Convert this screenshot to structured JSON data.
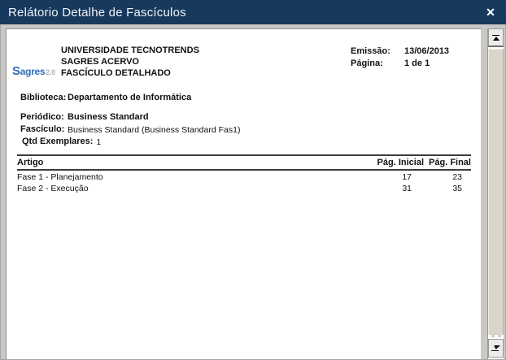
{
  "dialog": {
    "title": "Relátorio Detalhe de Fascículos",
    "close_glyph": "✕"
  },
  "report": {
    "logo": {
      "brand_initial": "S",
      "brand_rest": "agres",
      "version": "2.0"
    },
    "org_lines": [
      "UNIVERSIDADE TECNOTRENDS",
      "SAGRES ACERVO",
      "FASCÍCULO DETALHADO"
    ],
    "meta": {
      "emissao_label": "Emissão:",
      "emissao_value": "13/06/2013",
      "pagina_label": "Página:",
      "pagina_value": "1 de 1"
    },
    "fields": [
      {
        "label": "Biblioteca:",
        "value": "Departamento de Informática"
      },
      {
        "label": "Periódico:",
        "value": "Business Standard"
      },
      {
        "label": "Fascículo:",
        "value": "Business Standard (Business Standard Fas1)"
      },
      {
        "label": "Qtd Exemplares:",
        "value": "1"
      }
    ],
    "table": {
      "columns": [
        "Artigo",
        "Pág. Inicial",
        "Pág. Final"
      ],
      "rows": [
        [
          "Fase 1 - Planejamento",
          "17",
          "23"
        ],
        [
          "Fase 2 - Execução",
          "31",
          "35"
        ]
      ]
    }
  },
  "colors": {
    "titlebar": "#18395e",
    "title_text": "#eef3f8",
    "logo_blue": "#2f6db5",
    "logo_gray": "#b4b4b4",
    "page_bg": "#ffffff",
    "dialog_bg": "#c9c8c4",
    "scroll_thumb": "#d9d5c9",
    "table_rule": "#3c3c3c"
  }
}
